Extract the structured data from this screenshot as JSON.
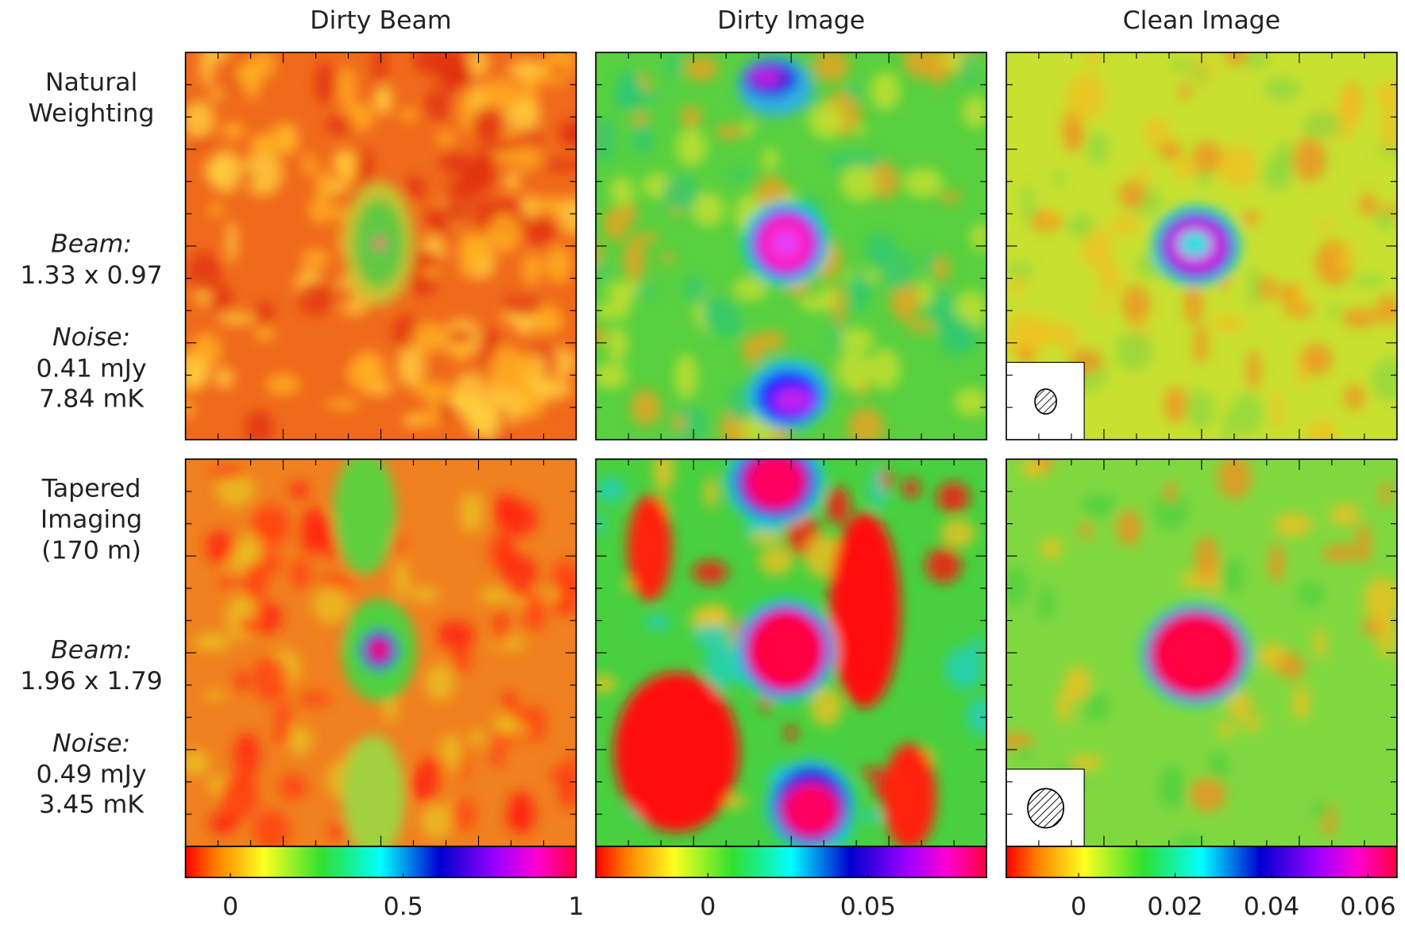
{
  "column_titles": [
    "Dirty Beam",
    "Dirty Image",
    "Clean Image"
  ],
  "rows": [
    {
      "method": [
        "Natural",
        "Weighting"
      ],
      "beam_heading": "Beam:",
      "beam": "1.33 x 0.97",
      "noise_heading": "Noise:",
      "noise": [
        "0.41 mJy",
        "7.84 mK"
      ],
      "color": "#4a4aff"
    },
    {
      "method": [
        "Tapered",
        "Imaging",
        "(170 m)"
      ],
      "beam_heading": "Beam:",
      "beam": "1.96 x 1.79",
      "noise_heading": "Noise:",
      "noise": [
        "0.49 mJy",
        "3.45 mK"
      ],
      "color": "#ff4040"
    }
  ],
  "colorbars": [
    {
      "range": [
        -0.13,
        1
      ],
      "ticks": [
        0,
        0.5,
        1
      ]
    },
    {
      "range": [
        -0.035,
        0.087
      ],
      "ticks": [
        0,
        0.05
      ]
    },
    {
      "range": [
        -0.015,
        0.066
      ],
      "ticks": [
        0,
        0.02,
        0.04,
        0.06
      ]
    }
  ]
}
